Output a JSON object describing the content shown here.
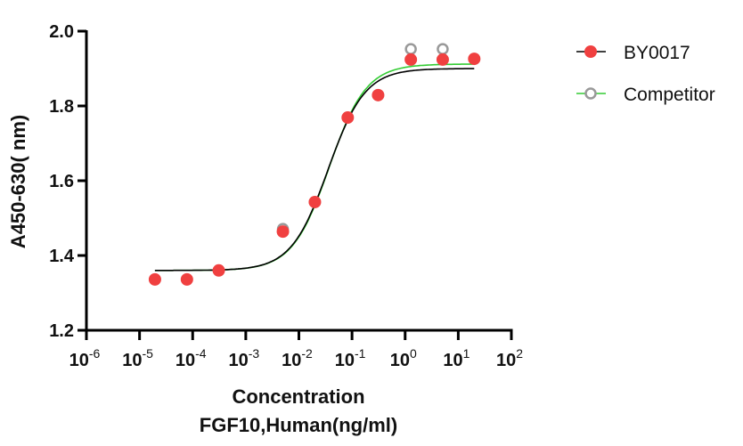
{
  "chart_data": {
    "type": "scatter",
    "title": "",
    "xlabel": "Concentration",
    "xlabel_line2": "FGF10,Human(ng/ml)",
    "ylabel": "A450-630( nm)",
    "xscale": "log",
    "xlim": [
      1e-06,
      100
    ],
    "ylim": [
      1.2,
      2.0
    ],
    "x_ticks": [
      -6,
      -5,
      -4,
      -3,
      -2,
      -1,
      0,
      1,
      2
    ],
    "x_tick_labels": [
      "10^-6",
      "10^-5",
      "10^-4",
      "10^-3",
      "10^-2",
      "10^-1",
      "10^0",
      "10^1",
      "10^2"
    ],
    "y_ticks": [
      1.2,
      1.4,
      1.6,
      1.8,
      2.0
    ],
    "y_tick_labels": [
      "1.2",
      "1.4",
      "1.6",
      "1.8",
      "2.0"
    ],
    "grid": false,
    "legend_position": "right",
    "series": [
      {
        "name": "BY0017",
        "color": "#f04040",
        "line_color": "#000000",
        "marker": "filled-circle",
        "x": [
          1.95e-05,
          7.8e-05,
          0.00031,
          0.005,
          0.02,
          0.083,
          0.31,
          1.28,
          5.1,
          20
        ],
        "y": [
          1.336,
          1.336,
          1.36,
          1.464,
          1.543,
          1.769,
          1.829,
          1.924,
          1.924,
          1.926
        ],
        "fit": {
          "bottom": 1.36,
          "top": 1.9,
          "log_ec50": -1.45,
          "hill": 1.25
        }
      },
      {
        "name": "Competitor",
        "color": "#999999",
        "line_color": "#33cc33",
        "marker": "open-circle",
        "x": [
          1.95e-05,
          7.8e-05,
          0.00031,
          0.005,
          0.02,
          0.083,
          0.31,
          1.28,
          5.1,
          20
        ],
        "y": [
          1.336,
          1.336,
          1.36,
          1.471,
          1.543,
          1.769,
          1.829,
          1.952,
          1.952,
          1.926
        ],
        "fit": {
          "bottom": 1.36,
          "top": 1.912,
          "log_ec50": -1.43,
          "hill": 1.25
        }
      }
    ]
  },
  "legend": {
    "items": [
      {
        "label": "BY0017"
      },
      {
        "label": "Competitor"
      }
    ]
  }
}
